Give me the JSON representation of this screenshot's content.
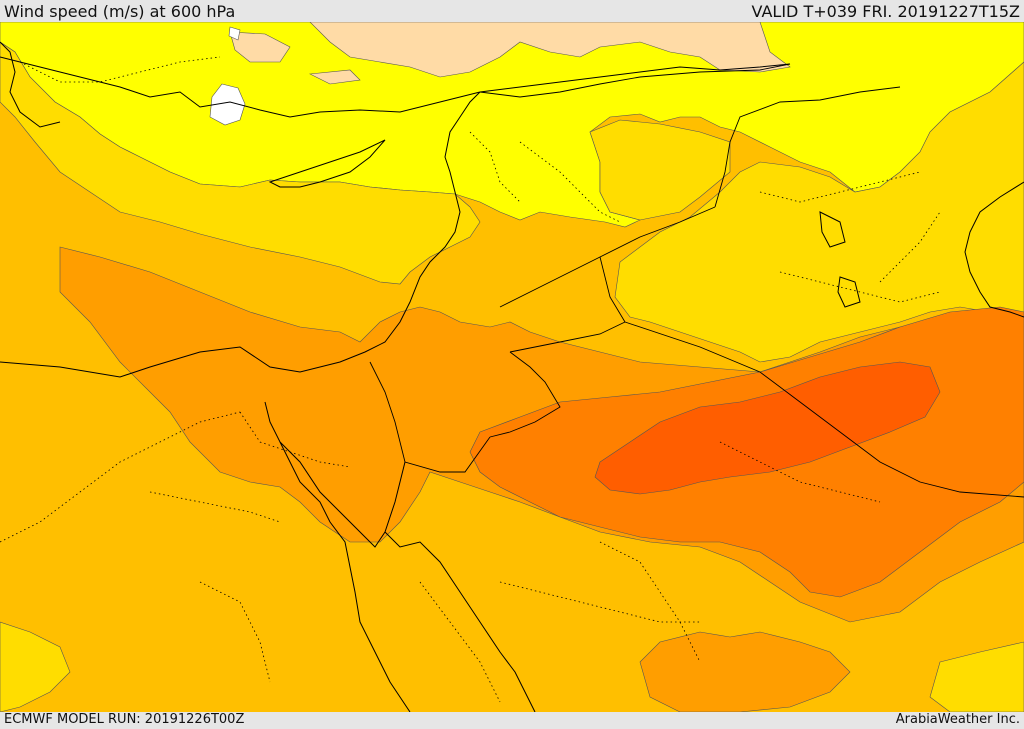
{
  "header": {
    "title": "Wind speed (m/s) at 600 hPa",
    "valid": "VALID T+039 FRI. 20191227T15Z"
  },
  "footer": {
    "model_run": "ECMWF MODEL RUN: 20191226T00Z",
    "credit": "ArabiaWeather Inc."
  },
  "colors": {
    "band_lightest": "#ffffff",
    "band_pale": "#ffdba6",
    "band_1": "#ffff00",
    "band_2": "#ffdd00",
    "band_3": "#ffbf00",
    "band_4": "#ff9e00",
    "band_5": "#ff8000",
    "band_6": "#ff5e00",
    "contour": "#555555",
    "coastline": "#000000"
  }
}
